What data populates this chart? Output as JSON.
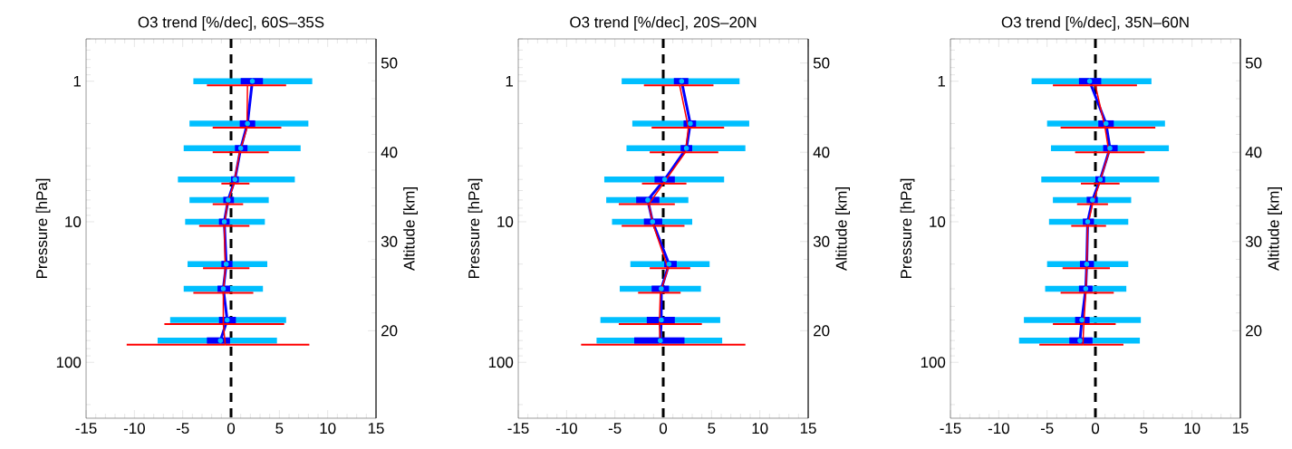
{
  "chart_data": [
    {
      "type": "line",
      "title": "O3 trend [%/dec], 60S–35S",
      "ylabel": "Pressure [hPa]",
      "y2label": "Altitude [km]",
      "log": "y",
      "grid": false,
      "marker": "none",
      "xlim": [
        -15,
        15
      ],
      "xticks": [
        -15,
        -10,
        -5,
        0,
        5,
        10,
        15
      ],
      "ylim": [
        250,
        0.5
      ],
      "yticks": [
        1,
        10,
        100
      ],
      "y2lim": [
        10.2,
        52.7
      ],
      "y2ticks": [
        20,
        30,
        40,
        50
      ],
      "ref_lines": [
        {
          "axis": "x",
          "value": 0,
          "color": "#000000",
          "line_style": "dashed"
        }
      ],
      "series": [
        {
          "type": "scatter",
          "color": "#00bfff",
          "x": [
            2.2,
            1.7,
            1.0,
            0.4,
            -0.3,
            -0.7,
            -0.5,
            -0.8,
            -0.4,
            -1.1
          ],
          "values": [
            1,
            2,
            3,
            5,
            7,
            10,
            20,
            30,
            50,
            70
          ],
          "xerrors": [
            [
              -3.9,
              8.4
            ],
            [
              -4.3,
              8.0
            ],
            [
              -4.9,
              7.2
            ],
            [
              -5.5,
              6.6
            ],
            [
              -4.3,
              3.9
            ],
            [
              -4.75,
              3.5
            ],
            [
              -4.5,
              3.75
            ],
            [
              -4.9,
              3.3
            ],
            [
              -6.3,
              5.7
            ],
            [
              -7.6,
              4.75
            ]
          ]
        },
        {
          "color": "#0000ff",
          "x": [
            2.2,
            1.7,
            1.0,
            0.4,
            -0.3,
            -0.7,
            -0.5,
            -0.8,
            -0.4,
            -1.1
          ],
          "values": [
            1,
            2,
            3,
            5,
            7,
            10,
            20,
            30,
            50,
            70
          ],
          "xerrors": [
            [
              1.0,
              3.3
            ],
            [
              0.9,
              2.5
            ],
            [
              0.4,
              1.7
            ],
            [
              0,
              0.8
            ],
            [
              -0.8,
              0.3
            ],
            [
              -1.25,
              -0.15
            ],
            [
              -1.0,
              0.15
            ],
            [
              -1.4,
              -0.1
            ],
            [
              -1.25,
              0.5
            ],
            [
              -2.5,
              -0.1
            ]
          ]
        },
        {
          "color": "#ff0000",
          "x": [
            1.7,
            1.65,
            0.9,
            0.3,
            -0.4,
            -0.7,
            -0.6,
            -0.8,
            -0.8,
            -0.6
          ],
          "values": [
            1.07,
            2.14,
            3.2,
            5.35,
            7.5,
            10.7,
            21.4,
            32,
            53.5,
            75
          ],
          "xerrors": [
            [
              -2.5,
              5.7
            ],
            [
              -1.9,
              5.2
            ],
            [
              -1.9,
              3.9
            ],
            [
              -1.0,
              1.9
            ],
            [
              -1.9,
              1.25
            ],
            [
              -3.3,
              1.9
            ],
            [
              -2.9,
              1.9
            ],
            [
              -3.9,
              2.3
            ],
            [
              -6.9,
              5.5
            ],
            [
              -10.8,
              8.1
            ]
          ]
        }
      ]
    },
    {
      "type": "line",
      "title": "O3 trend [%/dec], 20S–20N",
      "ylabel": "Pressure [hPa]",
      "y2label": "Altitude [km]",
      "log": "y",
      "grid": false,
      "marker": "none",
      "xlim": [
        -15,
        15
      ],
      "xticks": [
        -15,
        -10,
        -5,
        0,
        5,
        10,
        15
      ],
      "ylim": [
        250,
        0.5
      ],
      "yticks": [
        1,
        10,
        100
      ],
      "y2lim": [
        10.2,
        52.7
      ],
      "y2ticks": [
        20,
        30,
        40,
        50
      ],
      "ref_lines": [
        {
          "axis": "x",
          "value": 0,
          "color": "#000000",
          "line_style": "dashed"
        }
      ],
      "series": [
        {
          "type": "scatter",
          "color": "#00bfff",
          "x": [
            1.9,
            2.8,
            2.4,
            0.15,
            -1.6,
            -1.1,
            0.6,
            -0.2,
            -0.2,
            -0.3
          ],
          "values": [
            1,
            2,
            3,
            5,
            7,
            10,
            20,
            30,
            50,
            70
          ],
          "xerrors": [
            [
              -4.3,
              7.9
            ],
            [
              -3.2,
              8.9
            ],
            [
              -3.8,
              8.5
            ],
            [
              -6.1,
              6.3
            ],
            [
              -5.9,
              2.6
            ],
            [
              -5.3,
              3.0
            ],
            [
              -3.4,
              4.8
            ],
            [
              -4.5,
              3.9
            ],
            [
              -6.5,
              5.9
            ],
            [
              -6.9,
              6.1
            ]
          ]
        },
        {
          "color": "#0000ff",
          "x": [
            1.9,
            2.8,
            2.4,
            0.15,
            -1.6,
            -1.1,
            0.6,
            -0.2,
            -0.2,
            -0.3
          ],
          "values": [
            1,
            2,
            3,
            5,
            7,
            10,
            20,
            30,
            50,
            70
          ],
          "xerrors": [
            [
              1.1,
              2.6
            ],
            [
              2.1,
              3.4
            ],
            [
              1.8,
              3.0
            ],
            [
              -0.9,
              1.2
            ],
            [
              -2.8,
              -0.4
            ],
            [
              -2.0,
              -0.1
            ],
            [
              0.1,
              1.4
            ],
            [
              -1.2,
              0.6
            ],
            [
              -1.7,
              1.2
            ],
            [
              -3.0,
              2.2
            ]
          ]
        },
        {
          "color": "#ff0000",
          "x": [
            1.7,
            2.6,
            2.3,
            0,
            -1.5,
            -1.0,
            0.5,
            -0.3,
            -0.4,
            -0.3
          ],
          "values": [
            1.07,
            2.14,
            3.2,
            5.35,
            7.5,
            10.7,
            21.4,
            32,
            53.5,
            75
          ],
          "xerrors": [
            [
              -2.0,
              5.2
            ],
            [
              -1.2,
              6.3
            ],
            [
              -1.4,
              5.7
            ],
            [
              -2.2,
              2.4
            ],
            [
              -4.6,
              1.2
            ],
            [
              -4.3,
              2.2
            ],
            [
              -1.4,
              2.8
            ],
            [
              -2.6,
              1.8
            ],
            [
              -4.6,
              4.0
            ],
            [
              -8.5,
              8.5
            ]
          ]
        }
      ]
    },
    {
      "type": "line",
      "title": "O3 trend [%/dec], 35N–60N",
      "ylabel": "Pressure [hPa]",
      "y2label": "Altitude [km]",
      "log": "y",
      "grid": false,
      "marker": "none",
      "xlim": [
        -15,
        15
      ],
      "xticks": [
        -15,
        -10,
        -5,
        0,
        5,
        10,
        15
      ],
      "ylim": [
        250,
        0.5
      ],
      "yticks": [
        1,
        10,
        100
      ],
      "y2lim": [
        10.2,
        52.7
      ],
      "y2ticks": [
        20,
        30,
        40,
        50
      ],
      "ref_lines": [
        {
          "axis": "x",
          "value": 0,
          "color": "#000000",
          "line_style": "dashed"
        }
      ],
      "series": [
        {
          "type": "scatter",
          "color": "#00bfff",
          "x": [
            -0.6,
            1.1,
            1.5,
            0.5,
            -0.3,
            -0.8,
            -0.9,
            -1.0,
            -1.4,
            -1.6
          ],
          "values": [
            1,
            2,
            3,
            5,
            7,
            10,
            20,
            30,
            50,
            70
          ],
          "xerrors": [
            [
              -6.6,
              5.8
            ],
            [
              -5.0,
              7.2
            ],
            [
              -4.6,
              7.6
            ],
            [
              -5.6,
              6.6
            ],
            [
              -4.4,
              3.7
            ],
            [
              -4.8,
              3.4
            ],
            [
              -5.0,
              3.4
            ],
            [
              -5.2,
              3.2
            ],
            [
              -7.4,
              4.7
            ],
            [
              -7.9,
              4.6
            ]
          ]
        },
        {
          "color": "#0000ff",
          "x": [
            -0.6,
            1.1,
            1.5,
            0.5,
            -0.3,
            -0.8,
            -0.9,
            -1.0,
            -1.4,
            -1.6
          ],
          "values": [
            1,
            2,
            3,
            5,
            7,
            10,
            20,
            30,
            50,
            70
          ],
          "xerrors": [
            [
              -1.7,
              0.6
            ],
            [
              0.3,
              1.9
            ],
            [
              0.8,
              2.3
            ],
            [
              0,
              1.0
            ],
            [
              -0.9,
              0.25
            ],
            [
              -1.3,
              -0.15
            ],
            [
              -1.6,
              -0.15
            ],
            [
              -1.7,
              -0.3
            ],
            [
              -2.1,
              -0.6
            ],
            [
              -2.7,
              -0.3
            ]
          ]
        },
        {
          "color": "#ff0000",
          "x": [
            0,
            1.0,
            1.4,
            0.4,
            -0.3,
            -0.8,
            -0.9,
            -1.0,
            -1.2,
            -1.3
          ],
          "values": [
            1.07,
            2.14,
            3.2,
            5.35,
            7.5,
            10.7,
            21.4,
            32,
            53.5,
            75
          ],
          "xerrors": [
            [
              -4.4,
              4.3
            ],
            [
              -3.6,
              6.2
            ],
            [
              -2.1,
              5.1
            ],
            [
              -1.5,
              2.5
            ],
            [
              -1.9,
              1.3
            ],
            [
              -2.5,
              1.1
            ],
            [
              -3.4,
              1.5
            ],
            [
              -3.6,
              1.9
            ],
            [
              -4.4,
              2.1
            ],
            [
              -5.8,
              2.9
            ]
          ]
        }
      ]
    }
  ]
}
